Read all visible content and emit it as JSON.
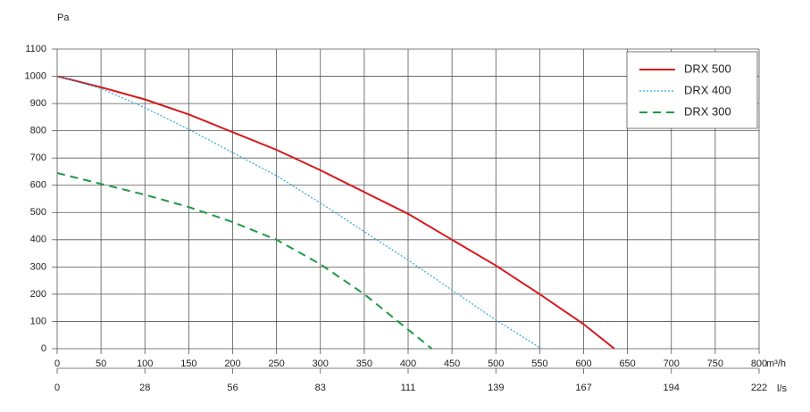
{
  "chart_data": {
    "type": "line",
    "y_label": "Pa",
    "x_label": "m³/h",
    "x2_label": "l/s",
    "xlim": [
      0,
      800
    ],
    "xticks": [
      0,
      50,
      100,
      150,
      200,
      250,
      300,
      350,
      400,
      450,
      500,
      550,
      600,
      650,
      700,
      750,
      800
    ],
    "ylim": [
      0,
      1100
    ],
    "yticks": [
      0,
      100,
      200,
      300,
      400,
      500,
      600,
      700,
      800,
      900,
      1000,
      1100
    ],
    "x2lim": [
      0,
      222.22
    ],
    "x2ticks": [
      0,
      {
        "value": 27.78,
        "label": "28"
      },
      {
        "value": 55.56,
        "label": "56"
      },
      {
        "value": 83.33,
        "label": "83"
      },
      {
        "value": 111.11,
        "label": "111"
      },
      {
        "value": 138.89,
        "label": "139"
      },
      {
        "value": 166.67,
        "label": "167"
      },
      {
        "value": 194.44,
        "label": "194"
      },
      {
        "value": 222.22,
        "label": "222"
      }
    ],
    "grid": true,
    "legend": "top-right",
    "series": [
      {
        "name": "DRX 500",
        "color": "#d7191c",
        "style": "solid",
        "x": [
          0,
          50,
          100,
          150,
          200,
          250,
          300,
          350,
          400,
          450,
          500,
          550,
          600,
          635
        ],
        "values": [
          1000,
          960,
          915,
          860,
          795,
          730,
          655,
          575,
          495,
          400,
          305,
          200,
          90,
          0
        ]
      },
      {
        "name": "DRX 400",
        "color": "#2aa7dc",
        "style": "dotted",
        "x": [
          0,
          50,
          100,
          150,
          200,
          250,
          300,
          350,
          400,
          450,
          500,
          552
        ],
        "values": [
          1000,
          955,
          885,
          805,
          720,
          635,
          535,
          430,
          325,
          215,
          105,
          0
        ]
      },
      {
        "name": "DRX 300",
        "color": "#1e9a48",
        "style": "dashed",
        "x": [
          0,
          50,
          100,
          150,
          200,
          250,
          300,
          350,
          400,
          427
        ],
        "values": [
          645,
          605,
          565,
          520,
          465,
          400,
          310,
          200,
          70,
          0
        ]
      }
    ]
  }
}
